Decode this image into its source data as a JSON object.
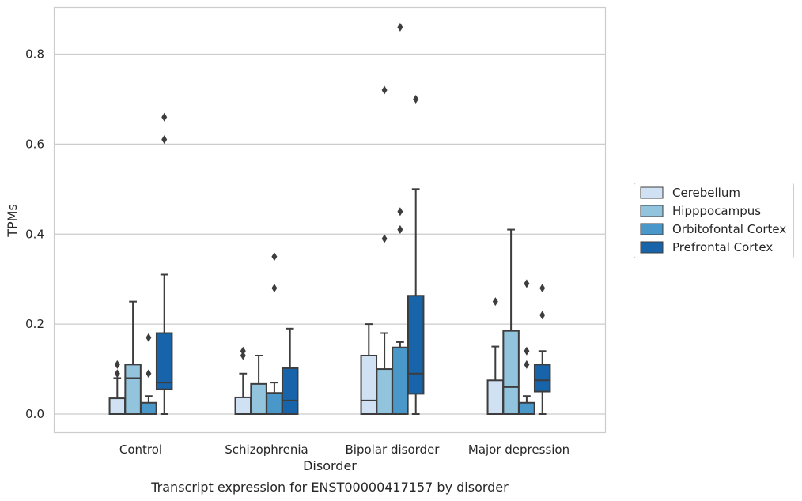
{
  "chart_data": {
    "type": "box",
    "xlabel": "Disorder",
    "ylabel": "TPMs",
    "caption": "Transcript expression for ENST00000417157 by disorder",
    "ylim": [
      -0.04,
      0.91
    ],
    "yticks": [
      "0.0",
      "0.2",
      "0.4",
      "0.6",
      "0.8"
    ],
    "ytick_values": [
      0.0,
      0.2,
      0.4,
      0.6,
      0.8
    ],
    "grid": "horizontal",
    "legend_placement": "right, outside",
    "categories": [
      "Control",
      "Schizophrenia",
      "Bipolar disorder",
      "Major depression"
    ],
    "series": [
      {
        "name": "Cerebellum",
        "color": "#cfe1f2",
        "boxes": [
          {
            "q1": 0.0,
            "median": 0.0,
            "q3": 0.035,
            "whisker_low": 0.0,
            "whisker_high": 0.08,
            "outliers": [
              0.09,
              0.11
            ]
          },
          {
            "q1": 0.0,
            "median": 0.0,
            "q3": 0.037,
            "whisker_low": 0.0,
            "whisker_high": 0.09,
            "outliers": [
              0.13,
              0.14
            ]
          },
          {
            "q1": 0.0,
            "median": 0.03,
            "q3": 0.13,
            "whisker_low": 0.0,
            "whisker_high": 0.2,
            "outliers": []
          },
          {
            "q1": 0.0,
            "median": 0.0,
            "q3": 0.075,
            "whisker_low": 0.0,
            "whisker_high": 0.15,
            "outliers": [
              0.25
            ]
          }
        ]
      },
      {
        "name": "Hipppocampus",
        "color": "#93c4de",
        "boxes": [
          {
            "q1": 0.0,
            "median": 0.08,
            "q3": 0.11,
            "whisker_low": 0.0,
            "whisker_high": 0.25,
            "outliers": []
          },
          {
            "q1": 0.0,
            "median": 0.0,
            "q3": 0.067,
            "whisker_low": 0.0,
            "whisker_high": 0.13,
            "outliers": []
          },
          {
            "q1": 0.0,
            "median": 0.0,
            "q3": 0.1,
            "whisker_low": 0.0,
            "whisker_high": 0.18,
            "outliers": [
              0.39,
              0.72
            ]
          },
          {
            "q1": 0.0,
            "median": 0.06,
            "q3": 0.185,
            "whisker_low": 0.0,
            "whisker_high": 0.41,
            "outliers": []
          }
        ]
      },
      {
        "name": "Orbitofontal Cortex",
        "color": "#4a98c9",
        "boxes": [
          {
            "q1": 0.0,
            "median": 0.0,
            "q3": 0.025,
            "whisker_low": 0.0,
            "whisker_high": 0.04,
            "outliers": [
              0.09,
              0.17
            ]
          },
          {
            "q1": 0.0,
            "median": 0.0,
            "q3": 0.047,
            "whisker_low": 0.0,
            "whisker_high": 0.07,
            "outliers": [
              0.28,
              0.35
            ]
          },
          {
            "q1": 0.0,
            "median": 0.0,
            "q3": 0.148,
            "whisker_low": 0.0,
            "whisker_high": 0.16,
            "outliers": [
              0.41,
              0.45,
              0.86
            ]
          },
          {
            "q1": 0.0,
            "median": 0.0,
            "q3": 0.025,
            "whisker_low": 0.0,
            "whisker_high": 0.04,
            "outliers": [
              0.11,
              0.14,
              0.29
            ]
          }
        ]
      },
      {
        "name": "Prefrontal Cortex",
        "color": "#1764ab",
        "boxes": [
          {
            "q1": 0.055,
            "median": 0.07,
            "q3": 0.18,
            "whisker_low": 0.0,
            "whisker_high": 0.31,
            "outliers": [
              0.61,
              0.66
            ]
          },
          {
            "q1": 0.0,
            "median": 0.03,
            "q3": 0.102,
            "whisker_low": 0.0,
            "whisker_high": 0.19,
            "outliers": []
          },
          {
            "q1": 0.045,
            "median": 0.09,
            "q3": 0.263,
            "whisker_low": 0.0,
            "whisker_high": 0.5,
            "outliers": [
              0.7
            ]
          },
          {
            "q1": 0.05,
            "median": 0.075,
            "q3": 0.11,
            "whisker_low": 0.0,
            "whisker_high": 0.14,
            "outliers": [
              0.22,
              0.28
            ]
          }
        ]
      }
    ]
  }
}
